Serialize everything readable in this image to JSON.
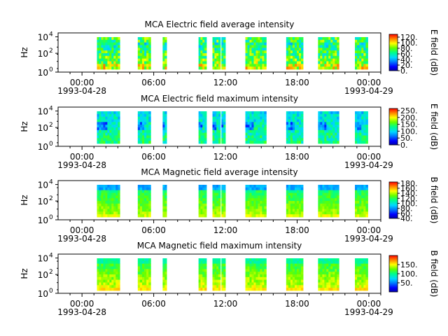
{
  "chart_data": [
    {
      "type": "heatmap",
      "title": "MCA  Electric field average intensity",
      "ylabel": "Hz",
      "y_scale": "log",
      "y_ticks": [
        "10^0",
        "10^2",
        "10^4"
      ],
      "x_tick_labels": [
        "00:00\n1993-04-28",
        "06:00",
        "12:00",
        "18:00",
        "00:00\n1993-04-29"
      ],
      "x_range": [
        "1993-04-27 22:00",
        "1993-04-29 01:00"
      ],
      "colorbar": {
        "label": "E field (dB)",
        "ticks": [
          "0.",
          "20.",
          "40.",
          "60.",
          "80.",
          "100.",
          "120."
        ],
        "range": [
          0,
          130
        ]
      },
      "data_intervals": [
        [
          "01:15",
          "03:10"
        ],
        [
          "04:40",
          "05:45"
        ],
        [
          "06:45",
          "07:05"
        ],
        [
          "09:45",
          "10:25"
        ],
        [
          "10:55",
          "11:35"
        ],
        [
          "11:40",
          "12:00"
        ],
        [
          "13:40",
          "15:25"
        ],
        [
          "17:05",
          "18:30"
        ],
        [
          "19:45",
          "21:30"
        ],
        [
          "22:50",
          "23:55"
        ]
      ],
      "level_profile": "average_e"
    },
    {
      "type": "heatmap",
      "title": "MCA  Electric field maximum intensity",
      "ylabel": "Hz",
      "y_scale": "log",
      "y_ticks": [
        "10^0",
        "10^2",
        "10^4"
      ],
      "x_tick_labels": [
        "00:00\n1993-04-28",
        "06:00",
        "12:00",
        "18:00",
        "00:00\n1993-04-29"
      ],
      "x_range": [
        "1993-04-27 22:00",
        "1993-04-29 01:00"
      ],
      "colorbar": {
        "label": "E field (dB)",
        "ticks": [
          "0.",
          "50.",
          "100.",
          "150.",
          "200.",
          "250."
        ],
        "range": [
          0,
          265
        ]
      },
      "data_intervals": [
        [
          "01:15",
          "03:10"
        ],
        [
          "04:40",
          "05:45"
        ],
        [
          "06:45",
          "07:05"
        ],
        [
          "09:45",
          "10:25"
        ],
        [
          "10:55",
          "11:35"
        ],
        [
          "11:40",
          "12:00"
        ],
        [
          "13:40",
          "15:25"
        ],
        [
          "17:05",
          "18:30"
        ],
        [
          "19:45",
          "21:30"
        ],
        [
          "22:50",
          "23:55"
        ]
      ],
      "level_profile": "maximum_e"
    },
    {
      "type": "heatmap",
      "title": "MCA  Magnetic field average intensity",
      "ylabel": "Hz",
      "y_scale": "log",
      "y_ticks": [
        "10^0",
        "10^2",
        "10^4"
      ],
      "x_tick_labels": [
        "00:00\n1993-04-28",
        "06:00",
        "12:00",
        "18:00",
        "00:00\n1993-04-29"
      ],
      "x_range": [
        "1993-04-27 22:00",
        "1993-04-29 01:00"
      ],
      "colorbar": {
        "label": "B field (dB)",
        "ticks": [
          "40.",
          "60.",
          "80.",
          "100.",
          "120.",
          "140.",
          "160.",
          "180."
        ],
        "range": [
          40,
          185
        ]
      },
      "data_intervals": [
        [
          "01:15",
          "03:10"
        ],
        [
          "04:40",
          "05:45"
        ],
        [
          "06:45",
          "07:05"
        ],
        [
          "09:45",
          "10:25"
        ],
        [
          "10:55",
          "11:35"
        ],
        [
          "11:40",
          "12:00"
        ],
        [
          "13:40",
          "15:25"
        ],
        [
          "17:05",
          "18:30"
        ],
        [
          "19:45",
          "21:30"
        ],
        [
          "22:50",
          "23:55"
        ]
      ],
      "level_profile": "average_b"
    },
    {
      "type": "heatmap",
      "title": "MCA  Magnetic field maximum intensity",
      "ylabel": "Hz",
      "y_scale": "log",
      "y_ticks": [
        "10^0",
        "10^2",
        "10^4"
      ],
      "x_tick_labels": [
        "00:00\n1993-04-28",
        "06:00",
        "12:00",
        "18:00",
        "00:00\n1993-04-29"
      ],
      "x_range": [
        "1993-04-27 22:00",
        "1993-04-29 01:00"
      ],
      "colorbar": {
        "label": "B field (dB)",
        "ticks": [
          "50.",
          "100.",
          "150."
        ],
        "range": [
          0,
          200
        ]
      },
      "data_intervals": [
        [
          "01:15",
          "03:10"
        ],
        [
          "04:40",
          "05:45"
        ],
        [
          "06:45",
          "07:05"
        ],
        [
          "09:45",
          "10:25"
        ],
        [
          "10:55",
          "11:35"
        ],
        [
          "11:40",
          "12:00"
        ],
        [
          "13:40",
          "15:25"
        ],
        [
          "17:05",
          "18:30"
        ],
        [
          "19:45",
          "21:30"
        ],
        [
          "22:50",
          "23:55"
        ]
      ],
      "level_profile": "maximum_b"
    }
  ]
}
